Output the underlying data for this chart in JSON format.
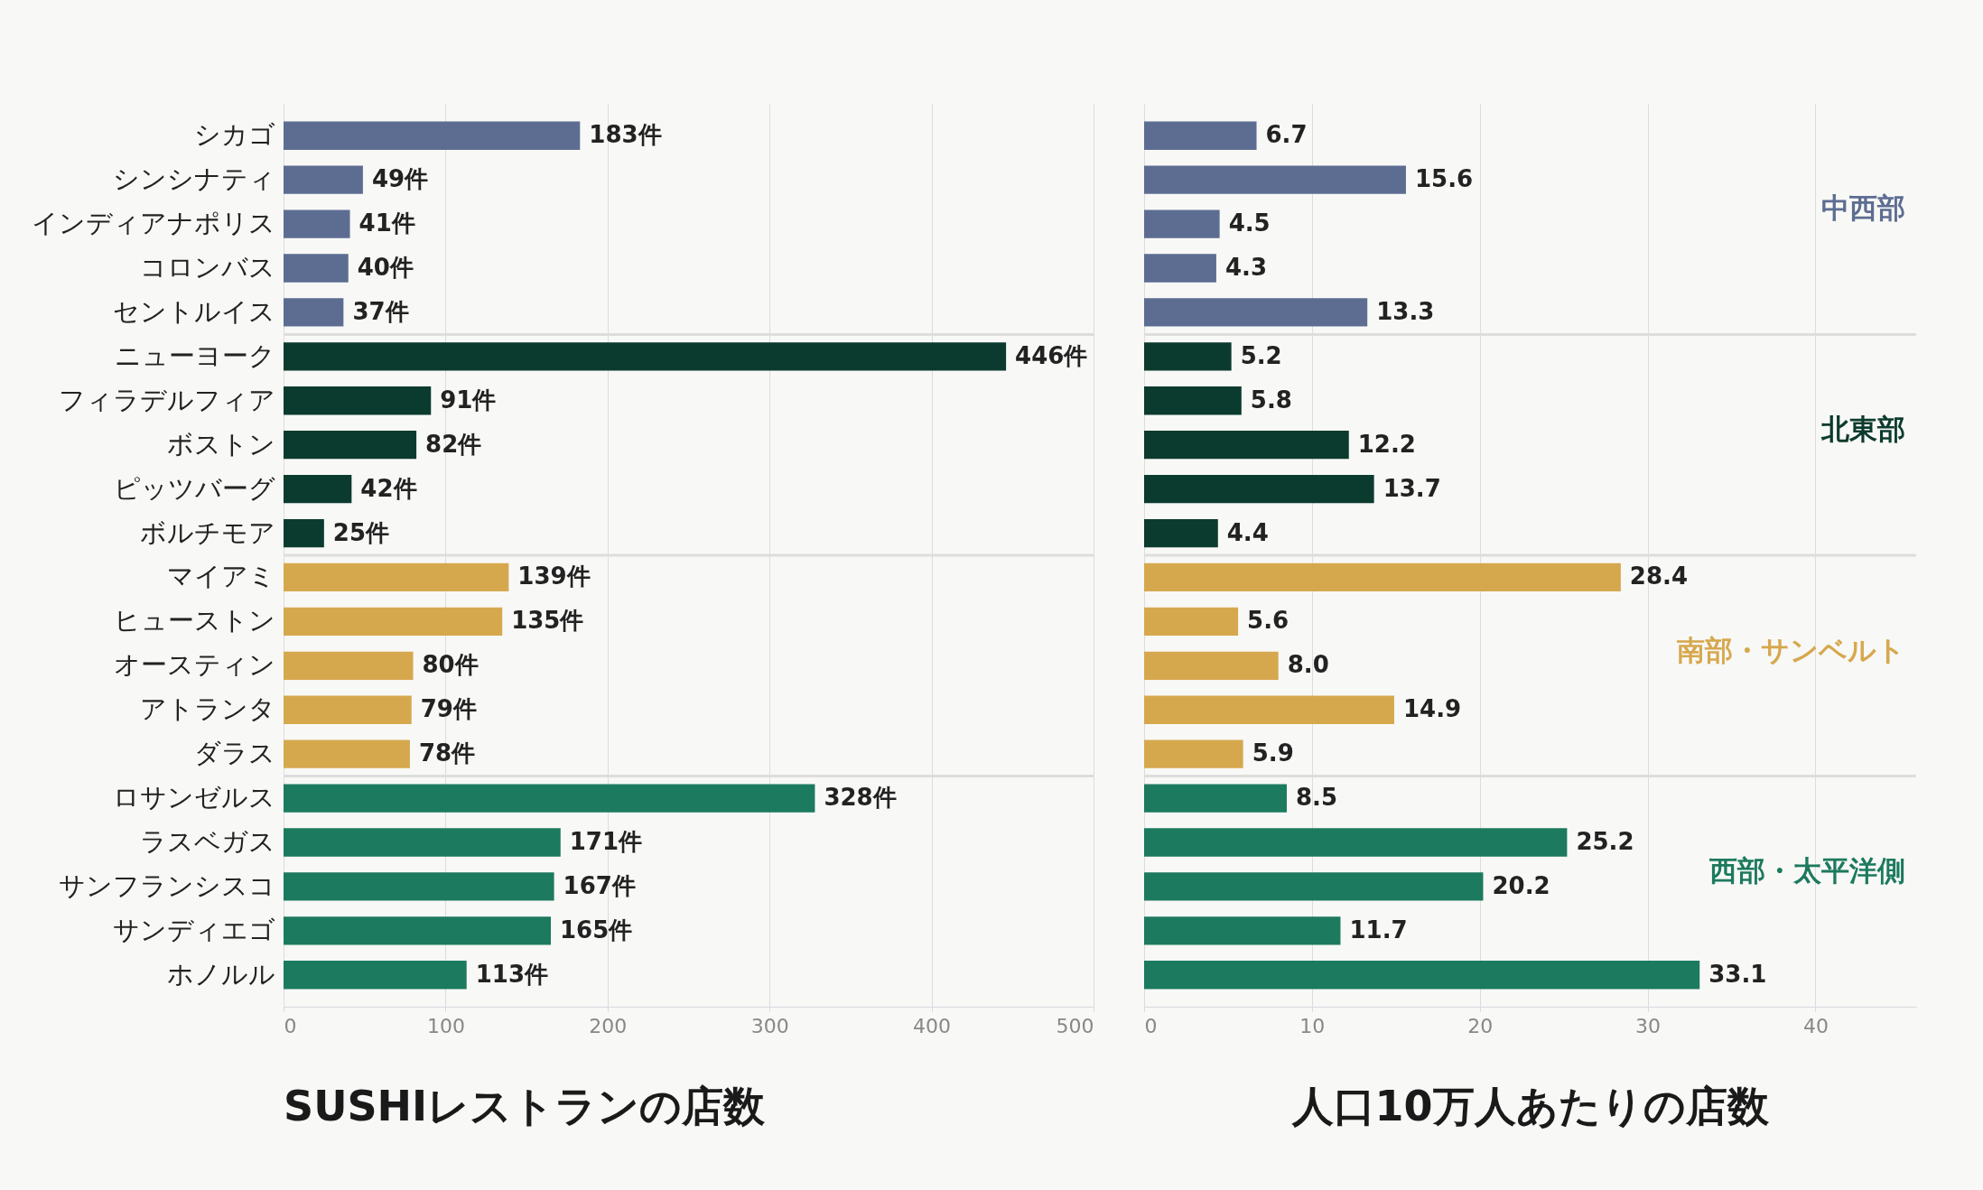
{
  "chart_data": [
    {
      "type": "bar",
      "orientation": "horizontal",
      "title": "SUSHIレストランの店数",
      "categories": [
        "シカゴ",
        "シンシナティ",
        "インディアナポリス",
        "コロンバス",
        "セントルイス",
        "ニューヨーク",
        "フィラデルフィア",
        "ボストン",
        "ピッツバーグ",
        "ボルチモア",
        "マイアミ",
        "ヒューストン",
        "オースティン",
        "アトランタ",
        "ダラス",
        "ロサンゼルス",
        "ラスベガス",
        "サンフランシスコ",
        "サンディエゴ",
        "ホノルル"
      ],
      "series": [
        {
          "color": "#5d6d92",
          "values": [
            183,
            49,
            41,
            40,
            37,
            null,
            null,
            null,
            null,
            null,
            null,
            null,
            null,
            null,
            null,
            null,
            null,
            null,
            null,
            null
          ],
          "value_labels": [
            "183件",
            "49件",
            "41件",
            "40件",
            "37件",
            null,
            null,
            null,
            null,
            null,
            null,
            null,
            null,
            null,
            null,
            null,
            null,
            null,
            null,
            null
          ]
        },
        {
          "color": "#0b3b2e",
          "values": [
            null,
            null,
            null,
            null,
            null,
            446,
            91,
            82,
            42,
            25,
            null,
            null,
            null,
            null,
            null,
            null,
            null,
            null,
            null,
            null
          ],
          "value_labels": [
            null,
            null,
            null,
            null,
            null,
            "446件",
            "91件",
            "82件",
            "42件",
            "25件",
            null,
            null,
            null,
            null,
            null,
            null,
            null,
            null,
            null,
            null
          ]
        },
        {
          "color": "#d6a84e",
          "values": [
            null,
            null,
            null,
            null,
            null,
            null,
            null,
            null,
            null,
            null,
            139,
            135,
            80,
            79,
            78,
            null,
            null,
            null,
            null,
            null
          ],
          "value_labels": [
            null,
            null,
            null,
            null,
            null,
            null,
            null,
            null,
            null,
            null,
            "139件",
            "135件",
            "80件",
            "79件",
            "78件",
            null,
            null,
            null,
            null,
            null
          ]
        },
        {
          "color": "#1c7a5e",
          "values": [
            null,
            null,
            null,
            null,
            null,
            null,
            null,
            null,
            null,
            null,
            null,
            null,
            null,
            null,
            null,
            328,
            171,
            167,
            165,
            113
          ],
          "value_labels": [
            null,
            null,
            null,
            null,
            null,
            null,
            null,
            null,
            null,
            null,
            null,
            null,
            null,
            null,
            null,
            "328件",
            "171件",
            "167件",
            "165件",
            "113件"
          ]
        }
      ],
      "xlim": [
        0,
        500
      ],
      "xticks": [
        0,
        100,
        200,
        300,
        400,
        500
      ],
      "grid": "x"
    },
    {
      "type": "bar",
      "orientation": "horizontal",
      "title": "人口10万人あたりの店数",
      "categories": [
        null,
        null,
        null,
        null,
        null,
        null,
        null,
        null,
        null,
        null,
        null,
        null,
        null,
        null,
        null,
        null,
        null,
        null,
        null,
        null
      ],
      "series": [
        {
          "name": "中西部",
          "color": "#5d6d92",
          "values": [
            6.7,
            15.6,
            4.5,
            4.3,
            13.3,
            null,
            null,
            null,
            null,
            null,
            null,
            null,
            null,
            null,
            null,
            null,
            null,
            null,
            null,
            null
          ],
          "value_labels": [
            "6.7",
            "15.6",
            "4.5",
            "4.3",
            "13.3",
            null,
            null,
            null,
            null,
            null,
            null,
            null,
            null,
            null,
            null,
            null,
            null,
            null,
            null,
            null
          ]
        },
        {
          "name": "北東部",
          "color": "#0b3b2e",
          "values": [
            null,
            null,
            null,
            null,
            null,
            5.2,
            5.8,
            12.2,
            13.7,
            4.4,
            null,
            null,
            null,
            null,
            null,
            null,
            null,
            null,
            null,
            null
          ],
          "value_labels": [
            null,
            null,
            null,
            null,
            null,
            "5.2",
            "5.8",
            "12.2",
            "13.7",
            "4.4",
            null,
            null,
            null,
            null,
            null,
            null,
            null,
            null,
            null,
            null
          ]
        },
        {
          "name": "南部・サンベルト",
          "color": "#d6a84e",
          "values": [
            null,
            null,
            null,
            null,
            null,
            null,
            null,
            null,
            null,
            null,
            28.4,
            5.6,
            8.0,
            14.9,
            5.9,
            null,
            null,
            null,
            null,
            null
          ],
          "value_labels": [
            null,
            null,
            null,
            null,
            null,
            null,
            null,
            null,
            null,
            null,
            "28.4",
            "5.6",
            "8.0",
            "14.9",
            "5.9",
            null,
            null,
            null,
            null,
            null
          ]
        },
        {
          "name": "西部・太平洋側",
          "color": "#1c7a5e",
          "values": [
            null,
            null,
            null,
            null,
            null,
            null,
            null,
            null,
            null,
            null,
            null,
            null,
            null,
            null,
            null,
            8.5,
            25.2,
            20.2,
            11.7,
            33.1
          ],
          "value_labels": [
            null,
            null,
            null,
            null,
            null,
            null,
            null,
            null,
            null,
            null,
            null,
            null,
            null,
            null,
            null,
            "8.5",
            "25.2",
            "20.2",
            "11.7",
            "33.1"
          ]
        }
      ],
      "xlim": [
        0,
        46
      ],
      "xticks": [
        0,
        10,
        20,
        30,
        40
      ],
      "grid": "x",
      "tick_labels": "x"
    }
  ]
}
